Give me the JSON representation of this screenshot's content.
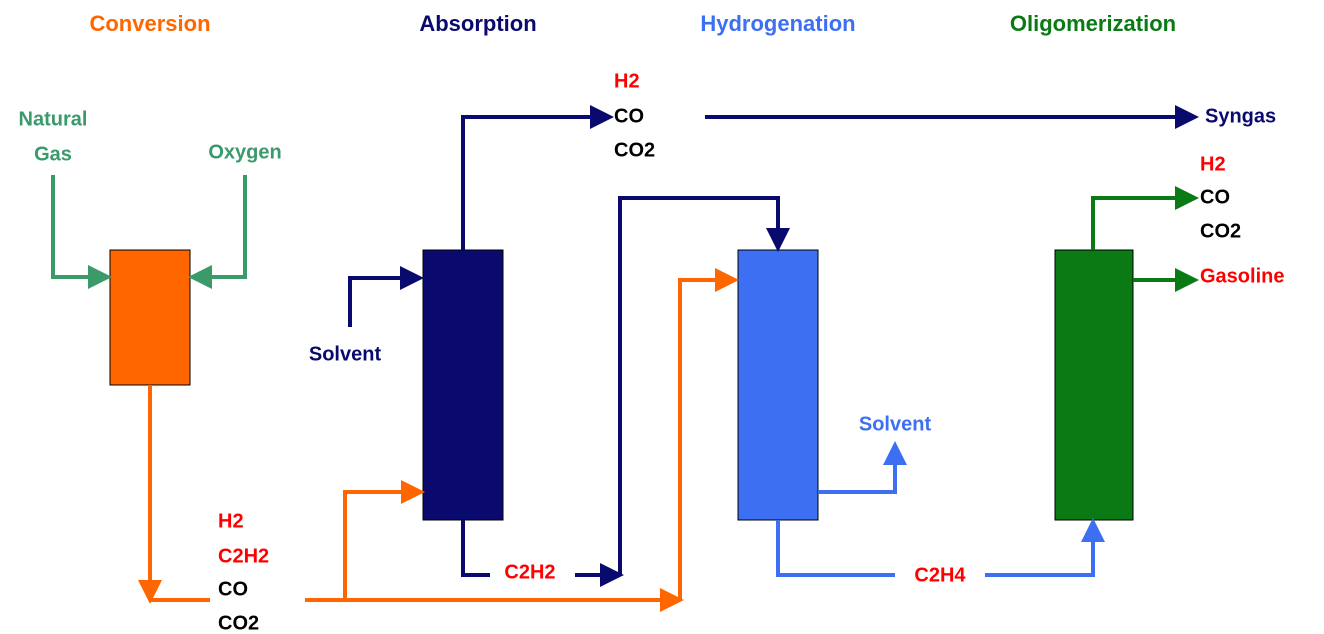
{
  "stages": [
    "Conversion",
    "Absorption",
    "Hydrogenation",
    "Oligomerization"
  ],
  "feeds": {
    "natural_gas": [
      "Natural",
      "Gas"
    ],
    "oxygen": "Oxygen",
    "absorber_solvent": "Solvent"
  },
  "conversion_product": [
    "H2",
    "C2H2",
    "CO",
    "CO2"
  ],
  "absorber_bottoms": "C2H2",
  "absorber_overhead": [
    "H2",
    "CO",
    "CO2"
  ],
  "syngas": "Syngas",
  "hydrogenation_solvent": "Solvent",
  "hydrogenation_product": "C2H4",
  "oligomerization_overhead": [
    "H2",
    "CO",
    "CO2"
  ],
  "gasoline": "Gasoline"
}
